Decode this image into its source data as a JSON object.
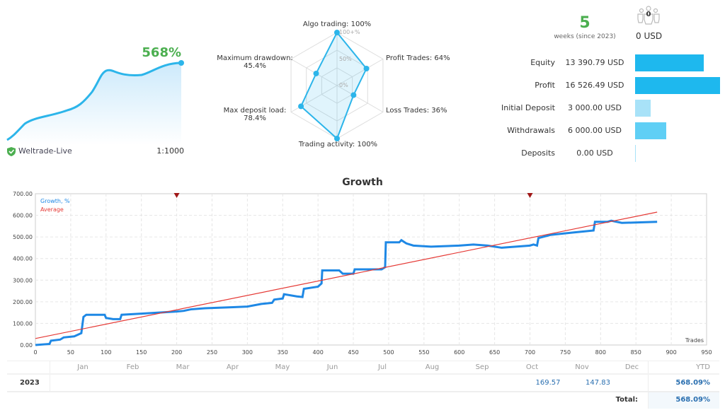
{
  "summary": {
    "growth": "568%",
    "broker": "Weltrade-Live",
    "leverage": "1:1000",
    "weeks": "5",
    "weeks_label": "weeks (since 2023)",
    "subscribers": "0",
    "subscribers_funds": "0 USD"
  },
  "radar": {
    "items": [
      {
        "label": "Algo trading: 100%",
        "value": 100
      },
      {
        "label": "Profit Trades: 64%",
        "value": 64
      },
      {
        "label": "Loss Trades: 36%",
        "value": 36
      },
      {
        "label": "Trading activity: 100%",
        "value": 100
      },
      {
        "label": "Max deposit load:",
        "sub": "78.4%",
        "value": 78.4
      },
      {
        "label": "Maximum drawdown:",
        "sub": "45.4%",
        "value": 45.4
      }
    ],
    "ticks": [
      "100+%",
      "50%",
      "0%"
    ]
  },
  "stats": [
    {
      "label": "Equity",
      "value": "13 390.79 USD",
      "amount": 13390.79,
      "color": "#1eb8ee"
    },
    {
      "label": "Profit",
      "value": "16 526.49 USD",
      "amount": 16526.49,
      "color": "#1eb8ee"
    },
    {
      "label": "Initial Deposit",
      "value": "3 000.00 USD",
      "amount": 3000,
      "color": "#a8e2f8"
    },
    {
      "label": "Withdrawals",
      "value": "6 000.00 USD",
      "amount": 6000,
      "color": "#5fcff5"
    },
    {
      "label": "Deposits",
      "value": "0.00 USD",
      "amount": 0,
      "color": "#a8e2f8"
    }
  ],
  "chart_data": {
    "type": "line",
    "title": "Growth",
    "xlabel": "Trades",
    "xlim": [
      0,
      950
    ],
    "ylim": [
      0,
      700
    ],
    "xticks": [
      0,
      50,
      100,
      150,
      200,
      250,
      300,
      350,
      400,
      450,
      500,
      550,
      600,
      650,
      700,
      750,
      800,
      850,
      900,
      950
    ],
    "yticks": [
      "0.00",
      "100.00",
      "200.00",
      "300.00",
      "400.00",
      "500.00",
      "600.00",
      "700.00"
    ],
    "grid": true,
    "legend_position": "top-left",
    "markers_x": [
      200,
      700
    ],
    "series": [
      {
        "name": "Growth, %",
        "color": "#1e88e5",
        "points": [
          [
            0,
            0
          ],
          [
            20,
            5
          ],
          [
            22,
            20
          ],
          [
            35,
            25
          ],
          [
            40,
            35
          ],
          [
            55,
            40
          ],
          [
            65,
            55
          ],
          [
            68,
            130
          ],
          [
            72,
            140
          ],
          [
            98,
            140
          ],
          [
            100,
            125
          ],
          [
            110,
            120
          ],
          [
            120,
            120
          ],
          [
            122,
            140
          ],
          [
            150,
            145
          ],
          [
            200,
            155
          ],
          [
            210,
            158
          ],
          [
            220,
            165
          ],
          [
            240,
            170
          ],
          [
            280,
            175
          ],
          [
            300,
            178
          ],
          [
            320,
            190
          ],
          [
            335,
            195
          ],
          [
            338,
            210
          ],
          [
            350,
            215
          ],
          [
            352,
            235
          ],
          [
            370,
            225
          ],
          [
            378,
            222
          ],
          [
            380,
            260
          ],
          [
            400,
            270
          ],
          [
            405,
            285
          ],
          [
            406,
            345
          ],
          [
            430,
            345
          ],
          [
            435,
            330
          ],
          [
            450,
            330
          ],
          [
            452,
            350
          ],
          [
            490,
            350
          ],
          [
            495,
            360
          ],
          [
            496,
            475
          ],
          [
            515,
            475
          ],
          [
            518,
            485
          ],
          [
            525,
            470
          ],
          [
            535,
            460
          ],
          [
            560,
            455
          ],
          [
            600,
            460
          ],
          [
            620,
            465
          ],
          [
            640,
            460
          ],
          [
            660,
            450
          ],
          [
            700,
            460
          ],
          [
            705,
            465
          ],
          [
            710,
            460
          ],
          [
            712,
            495
          ],
          [
            730,
            510
          ],
          [
            760,
            520
          ],
          [
            790,
            530
          ],
          [
            792,
            570
          ],
          [
            810,
            570
          ],
          [
            815,
            575
          ],
          [
            830,
            565
          ],
          [
            880,
            570
          ]
        ]
      },
      {
        "name": "Average",
        "color": "#e53935",
        "points": [
          [
            0,
            30
          ],
          [
            880,
            615
          ]
        ]
      }
    ]
  },
  "table": {
    "months": [
      "Jan",
      "Feb",
      "Mar",
      "Apr",
      "May",
      "Jun",
      "Jul",
      "Aug",
      "Sep",
      "Oct",
      "Nov",
      "Dec"
    ],
    "ytd_label": "YTD",
    "rows": [
      {
        "year": "2023",
        "values": [
          "",
          "",
          "",
          "",
          "",
          "",
          "",
          "",
          "",
          "169.57",
          "147.83",
          ""
        ],
        "ytd": "568.09%"
      }
    ],
    "total_label": "Total:",
    "total": "568.09%"
  }
}
